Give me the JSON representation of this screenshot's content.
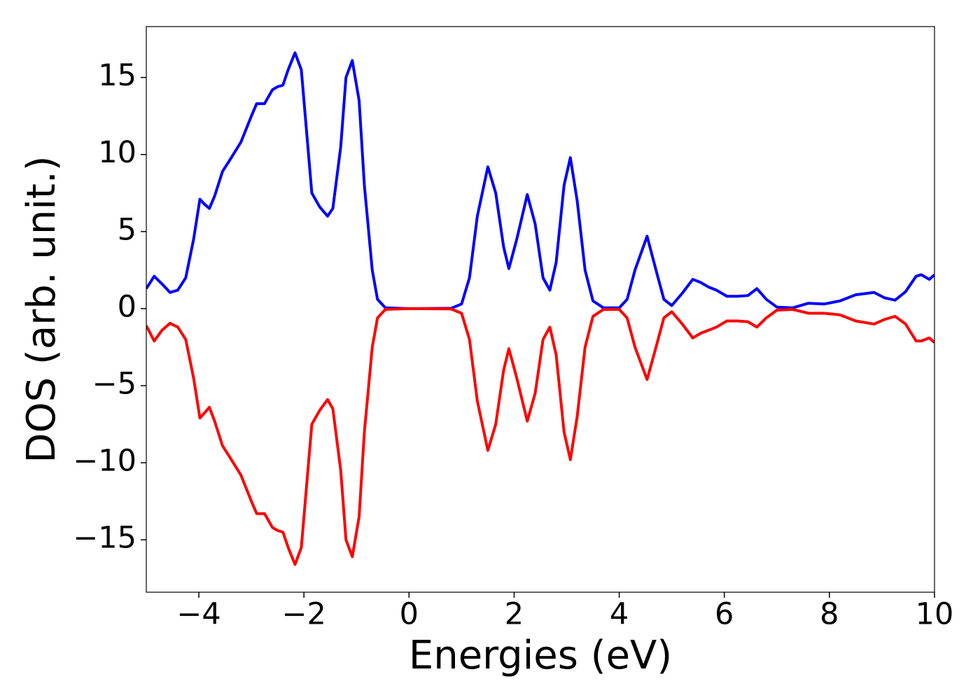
{
  "chart_data": {
    "type": "line",
    "xlabel": "Energies (eV)",
    "ylabel": "DOS (arb. unit.)",
    "x": [
      -5,
      -4.85,
      -4.7,
      -4.55,
      -4.4,
      -4.25,
      -4.1,
      -3.98,
      -3.9,
      -3.8,
      -3.7,
      -3.55,
      -3.4,
      -3.2,
      -3.0,
      -2.9,
      -2.75,
      -2.6,
      -2.5,
      -2.4,
      -2.3,
      -2.17,
      -2.05,
      -1.95,
      -1.85,
      -1.7,
      -1.55,
      -1.45,
      -1.3,
      -1.2,
      -1.08,
      -0.95,
      -0.85,
      -0.7,
      -0.6,
      -0.45,
      0,
      0.8,
      1.0,
      1.15,
      1.3,
      1.5,
      1.65,
      1.8,
      1.9,
      2.05,
      2.25,
      2.4,
      2.55,
      2.68,
      2.8,
      2.95,
      3.07,
      3.2,
      3.35,
      3.5,
      3.7,
      4.0,
      4.15,
      4.3,
      4.53,
      4.7,
      4.85,
      5.0,
      5.2,
      5.4,
      5.55,
      5.7,
      5.85,
      6.05,
      6.25,
      6.45,
      6.62,
      6.8,
      7.0,
      7.3,
      7.6,
      7.9,
      8.2,
      8.5,
      8.85,
      9.05,
      9.25,
      9.45,
      9.65,
      9.75,
      9.9,
      10
    ],
    "series": [
      {
        "color": "#0000ff",
        "values": [
          1.3,
          2.1,
          1.6,
          1.05,
          1.2,
          2.0,
          4.5,
          7.1,
          6.8,
          6.5,
          7.3,
          8.9,
          9.7,
          10.8,
          12.5,
          13.3,
          13.3,
          14.2,
          14.4,
          14.5,
          15.5,
          16.6,
          15.5,
          11.5,
          7.5,
          6.6,
          6.0,
          6.5,
          10.5,
          15.0,
          16.1,
          13.5,
          8.0,
          2.5,
          0.6,
          0.05,
          0,
          0.02,
          0.3,
          2.0,
          6.0,
          9.2,
          7.5,
          4.0,
          2.6,
          4.5,
          7.4,
          5.5,
          2.0,
          1.2,
          3.0,
          8.0,
          9.8,
          7.0,
          2.5,
          0.5,
          0.05,
          0.05,
          0.6,
          2.5,
          4.7,
          2.5,
          0.6,
          0.2,
          1.0,
          1.9,
          1.7,
          1.4,
          1.2,
          0.8,
          0.8,
          0.85,
          1.3,
          0.6,
          0.1,
          0.05,
          0.35,
          0.3,
          0.5,
          0.9,
          1.05,
          0.7,
          0.55,
          1.1,
          2.1,
          2.2,
          1.9,
          2.2
        ]
      },
      {
        "color": "#ff0000",
        "values": [
          -1.1,
          -2.1,
          -1.4,
          -0.95,
          -1.2,
          -2.0,
          -4.5,
          -7.1,
          -6.8,
          -6.4,
          -7.3,
          -8.9,
          -9.7,
          -10.8,
          -12.5,
          -13.3,
          -13.3,
          -14.2,
          -14.4,
          -14.5,
          -15.5,
          -16.6,
          -15.5,
          -11.5,
          -7.5,
          -6.6,
          -5.9,
          -6.5,
          -10.5,
          -15.0,
          -16.1,
          -13.5,
          -8.0,
          -2.5,
          -0.6,
          -0.05,
          0,
          -0.02,
          -0.3,
          -2.0,
          -6.0,
          -9.2,
          -7.5,
          -4.0,
          -2.6,
          -4.5,
          -7.3,
          -5.5,
          -2.0,
          -1.2,
          -3.0,
          -8.0,
          -9.8,
          -7.0,
          -2.5,
          -0.5,
          -0.05,
          -0.05,
          -0.6,
          -2.5,
          -4.6,
          -2.5,
          -0.6,
          -0.2,
          -1.0,
          -1.9,
          -1.6,
          -1.4,
          -1.2,
          -0.8,
          -0.8,
          -0.85,
          -1.2,
          -0.6,
          -0.1,
          -0.05,
          -0.3,
          -0.3,
          -0.4,
          -0.8,
          -1.0,
          -0.7,
          -0.5,
          -1.0,
          -2.1,
          -2.1,
          -1.9,
          -2.2
        ]
      }
    ],
    "xlim": [
      -5,
      10
    ],
    "xticks": [
      {
        "value": -4,
        "label": "−4"
      },
      {
        "value": -2,
        "label": "−2"
      },
      0,
      2,
      4,
      6,
      8,
      10
    ],
    "ylim": [
      -18.4,
      18.3
    ],
    "yticks": [
      {
        "value": -15,
        "label": "−15"
      },
      {
        "value": -10,
        "label": "−10"
      },
      {
        "value": -5,
        "label": "−5"
      },
      0,
      5,
      10,
      15
    ]
  }
}
